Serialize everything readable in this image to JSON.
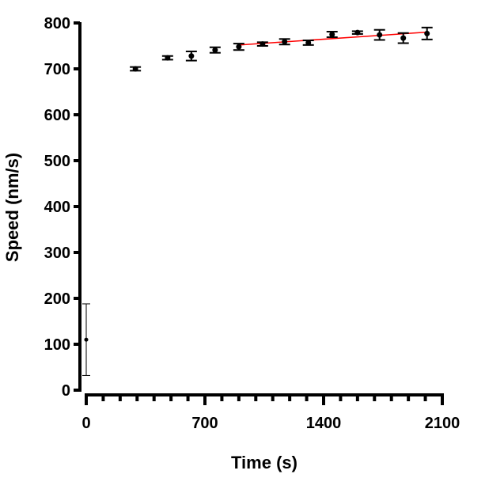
{
  "chart_data": {
    "type": "scatter",
    "title": "",
    "xlabel": "Time (s)",
    "ylabel": "Speed (nm/s)",
    "xlim": [
      0,
      2100
    ],
    "ylim": [
      0,
      800
    ],
    "x_ticks": [
      "0",
      "700",
      "1400",
      "2100"
    ],
    "x_tick_values": [
      0,
      700,
      1400,
      2100
    ],
    "x_minor_step": 100,
    "y_ticks": [
      "0",
      "100",
      "200",
      "300",
      "400",
      "500",
      "600",
      "700",
      "800"
    ],
    "y_tick_values": [
      0,
      100,
      200,
      300,
      400,
      500,
      600,
      700,
      800
    ],
    "grid": false,
    "legend": "none",
    "series": [
      {
        "color": "#000000",
        "x": [
          0,
          290,
          480,
          620,
          760,
          900,
          1040,
          1170,
          1310,
          1450,
          1600,
          1730,
          1870,
          2010
        ],
        "y": [
          110,
          700,
          724,
          728,
          741,
          748,
          754,
          759,
          757,
          775,
          779,
          774,
          767,
          777
        ],
        "error": [
          78,
          4,
          4,
          10,
          6,
          7,
          4,
          6,
          5,
          6,
          3,
          11,
          11,
          13
        ]
      }
    ],
    "fit_line": {
      "color": "#ff0000",
      "x": [
        900,
        2010
      ],
      "y": [
        752,
        780
      ]
    }
  }
}
